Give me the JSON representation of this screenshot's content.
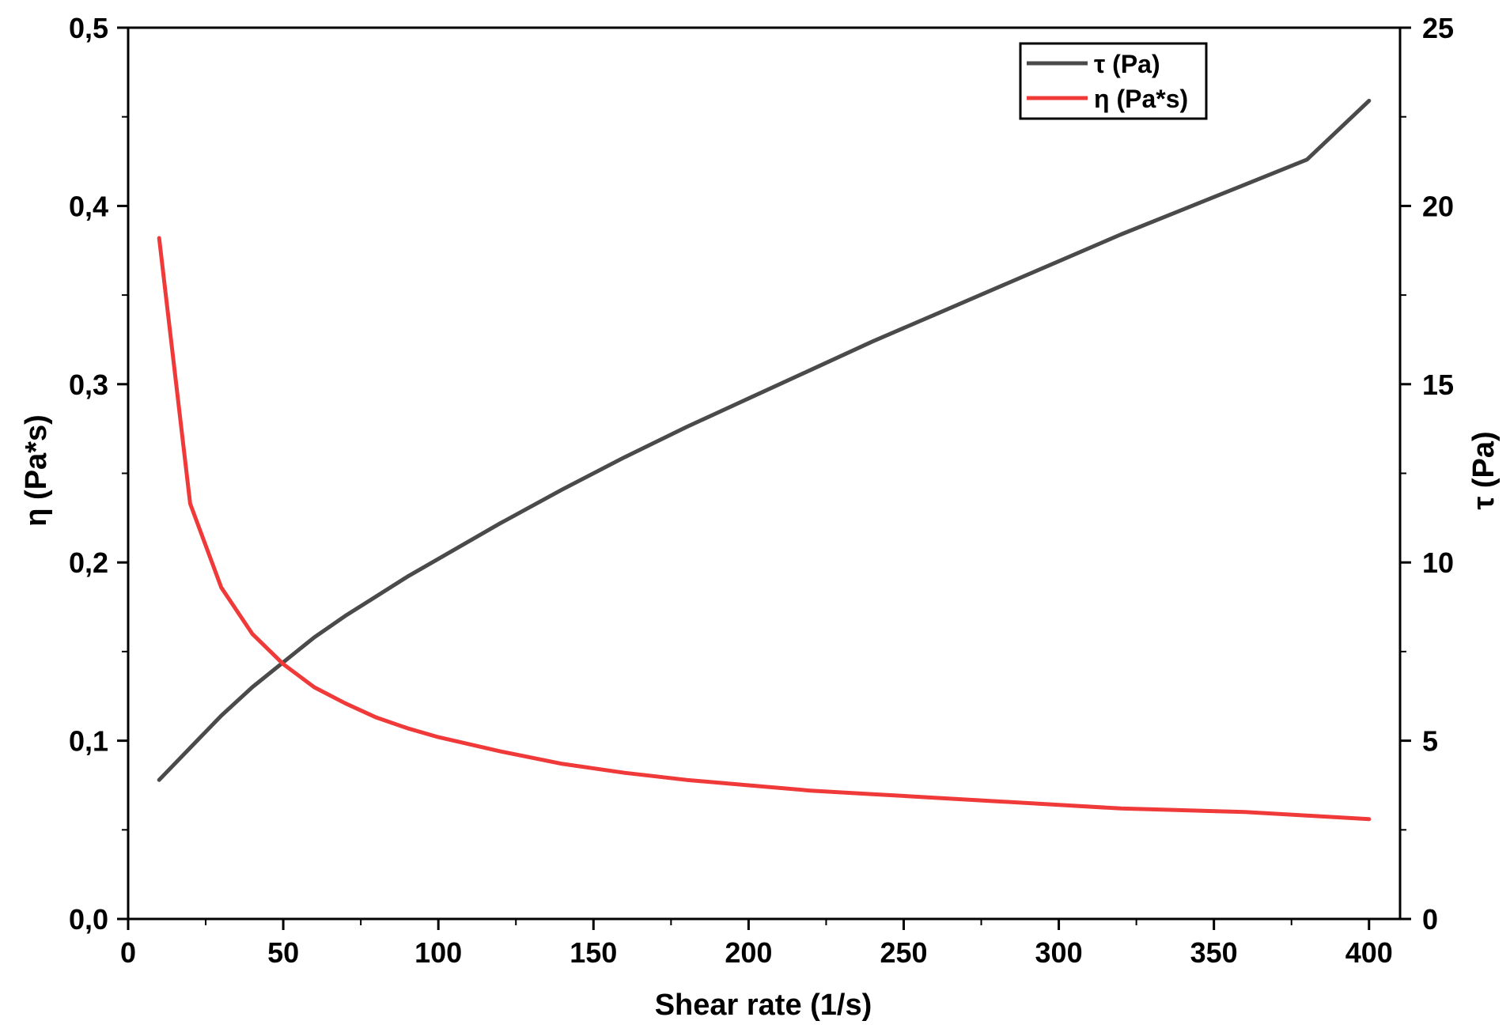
{
  "chart_data": {
    "type": "line",
    "xlabel": "Shear rate (1/s)",
    "ylabel_left": "η (Pa*s)",
    "ylabel_right": "τ (Pa)",
    "xlim": [
      0,
      410
    ],
    "ylim_left": [
      0,
      0.5
    ],
    "ylim_right": [
      0,
      25
    ],
    "x_ticks": [
      "0",
      "50",
      "100",
      "150",
      "200",
      "250",
      "300",
      "350",
      "400"
    ],
    "y_left_ticks": [
      "0,0",
      "0,1",
      "0,2",
      "0,3",
      "0,4",
      "0,5"
    ],
    "y_right_ticks": [
      "0",
      "5",
      "10",
      "15",
      "20",
      "25"
    ],
    "legend_position": "top-right",
    "grid": false,
    "series": [
      {
        "name": "τ (Pa)",
        "axis": "right",
        "color": "#4a4a4a",
        "x": [
          10,
          20,
          30,
          40,
          50,
          60,
          70,
          80,
          90,
          100,
          120,
          140,
          160,
          180,
          200,
          220,
          240,
          260,
          280,
          300,
          320,
          340,
          360,
          380,
          400
        ],
        "y": [
          3.9,
          4.8,
          5.7,
          6.5,
          7.2,
          7.9,
          8.5,
          9.05,
          9.6,
          10.1,
          11.1,
          12.05,
          12.95,
          13.8,
          14.6,
          15.4,
          16.2,
          16.95,
          17.7,
          18.45,
          19.2,
          19.9,
          20.6,
          21.3,
          22.95
        ]
      },
      {
        "name": "η (Pa*s)",
        "axis": "left",
        "color": "#f03a3a",
        "x": [
          10,
          20,
          30,
          40,
          50,
          60,
          70,
          80,
          90,
          100,
          120,
          140,
          160,
          180,
          200,
          220,
          240,
          260,
          280,
          300,
          320,
          340,
          360,
          380,
          400
        ],
        "y": [
          0.382,
          0.233,
          0.186,
          0.16,
          0.143,
          0.13,
          0.121,
          0.113,
          0.107,
          0.102,
          0.094,
          0.087,
          0.082,
          0.078,
          0.075,
          0.072,
          0.07,
          0.068,
          0.066,
          0.064,
          0.062,
          0.061,
          0.06,
          0.058,
          0.056
        ]
      }
    ]
  }
}
